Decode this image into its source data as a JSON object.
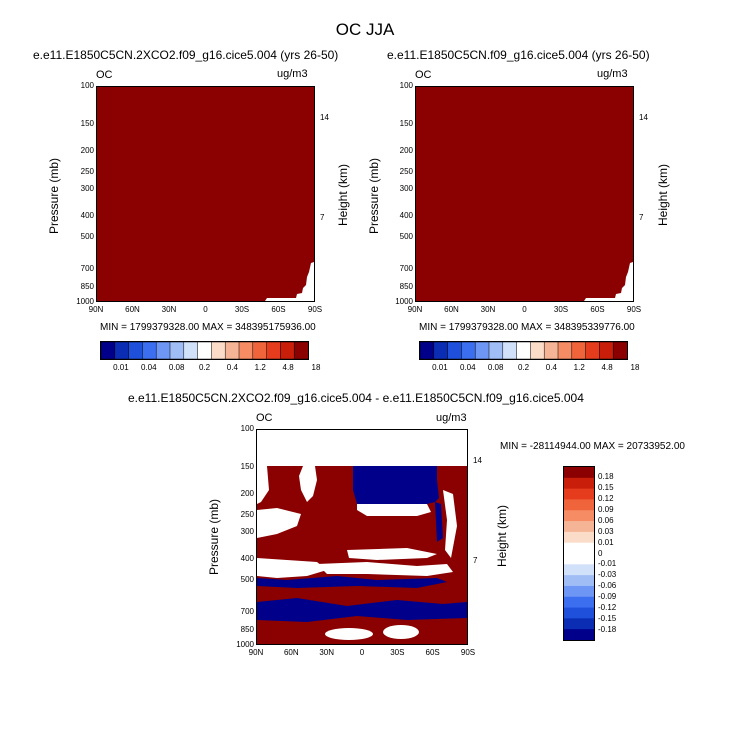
{
  "page_title": "OC JJA",
  "panels": [
    {
      "subtitle": "e.e11.E1850C5CN.2XCO2.f09_g16.cice5.004 (yrs 26-50)",
      "left_label": "OC",
      "right_label": "ug/m3",
      "ylabel_left": "Pressure (mb)",
      "ylabel_right": "Height (km)",
      "minmax": "MIN = 1799379328.00   MAX = 348395175936.00"
    },
    {
      "subtitle": "e.e11.E1850C5CN.f09_g16.cice5.004 (yrs 26-50)",
      "left_label": "OC",
      "right_label": "ug/m3",
      "ylabel_left": "Pressure (mb)",
      "ylabel_right": "Height (km)",
      "minmax": "MIN = 1799379328.00   MAX = 348395339776.00"
    },
    {
      "subtitle": "e.e11.E1850C5CN.2XCO2.f09_g16.cice5.004 - e.e11.E1850C5CN.f09_g16.cice5.004",
      "left_label": "OC",
      "right_label": "ug/m3",
      "ylabel_left": "Pressure (mb)",
      "ylabel_right": "Height (km)",
      "minmax": "MIN = -28114944.00   MAX = 20733952.00"
    }
  ],
  "chart_data": {
    "type": "heatmap",
    "x_ticks": [
      "90N",
      "60N",
      "30N",
      "0",
      "30S",
      "60S",
      "90S"
    ],
    "y_ticks_pressure": [
      "100",
      "150",
      "200",
      "250",
      "300",
      "400",
      "500",
      "700",
      "850",
      "1000"
    ],
    "y_ticks_height": [
      "14",
      "7"
    ],
    "colorbar_top": {
      "labels": [
        "0.01",
        "0.04",
        "0.08",
        "0.2",
        "0.4",
        "1.2",
        "4.8",
        "18"
      ],
      "colors": [
        "#00008b",
        "#0a2db4",
        "#1e50dc",
        "#3c6ef0",
        "#6e96f5",
        "#a0bef5",
        "#d2e1fa",
        "#ffffff",
        "#fadcc8",
        "#f5b496",
        "#f58c64",
        "#f0643c",
        "#e63c1e",
        "#c81e0a",
        "#8b0000"
      ]
    },
    "colorbar_diff": {
      "labels": [
        "0.18",
        "0.15",
        "0.12",
        "0.09",
        "0.06",
        "0.03",
        "0.01",
        "0",
        "-0.01",
        "-0.03",
        "-0.06",
        "-0.09",
        "-0.12",
        "-0.15",
        "-0.18"
      ],
      "colors": [
        "#8b0000",
        "#c81e0a",
        "#e63c1e",
        "#f0643c",
        "#f58c64",
        "#f5b496",
        "#fadcc8",
        "#ffffff",
        "#ffffff",
        "#d2e1fa",
        "#a0bef5",
        "#6e96f5",
        "#3c6ef0",
        "#1e50dc",
        "#0a2db4",
        "#00008b"
      ]
    }
  }
}
